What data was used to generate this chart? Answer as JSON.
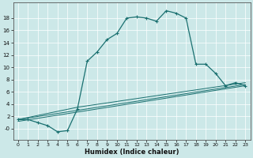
{
  "xlabel": "Humidex (Indice chaleur)",
  "background_color": "#cce8e8",
  "line_color": "#1a7070",
  "xlim": [
    -0.5,
    23.5
  ],
  "ylim": [
    -1.8,
    20.5
  ],
  "xticks": [
    0,
    1,
    2,
    3,
    4,
    5,
    6,
    7,
    8,
    9,
    10,
    11,
    12,
    13,
    14,
    15,
    16,
    17,
    18,
    19,
    20,
    21,
    22,
    23
  ],
  "yticks": [
    0,
    2,
    4,
    6,
    8,
    10,
    12,
    14,
    16,
    18
  ],
  "ytick_labels": [
    "-0",
    "2",
    "4",
    "6",
    "8",
    "10",
    "12",
    "14",
    "16",
    "18"
  ],
  "main_x": [
    0,
    1,
    2,
    3,
    4,
    5,
    6,
    7,
    8,
    9,
    10,
    11,
    12,
    13,
    14,
    15,
    16,
    17,
    18,
    19,
    20,
    21,
    22,
    23
  ],
  "main_y": [
    1.5,
    1.5,
    1.0,
    0.5,
    -0.5,
    -0.3,
    3.2,
    11.0,
    12.5,
    14.5,
    15.5,
    18.0,
    18.2,
    18.0,
    17.5,
    19.2,
    18.8,
    18.0,
    10.5,
    10.5,
    9.0,
    7.0,
    7.5,
    7.0
  ],
  "line1_x": [
    0,
    23
  ],
  "line1_y": [
    1.5,
    7.2
  ],
  "line2_x": [
    0,
    23
  ],
  "line2_y": [
    1.2,
    7.0
  ],
  "line3_x": [
    0,
    6,
    23
  ],
  "line3_y": [
    1.5,
    3.5,
    7.5
  ]
}
